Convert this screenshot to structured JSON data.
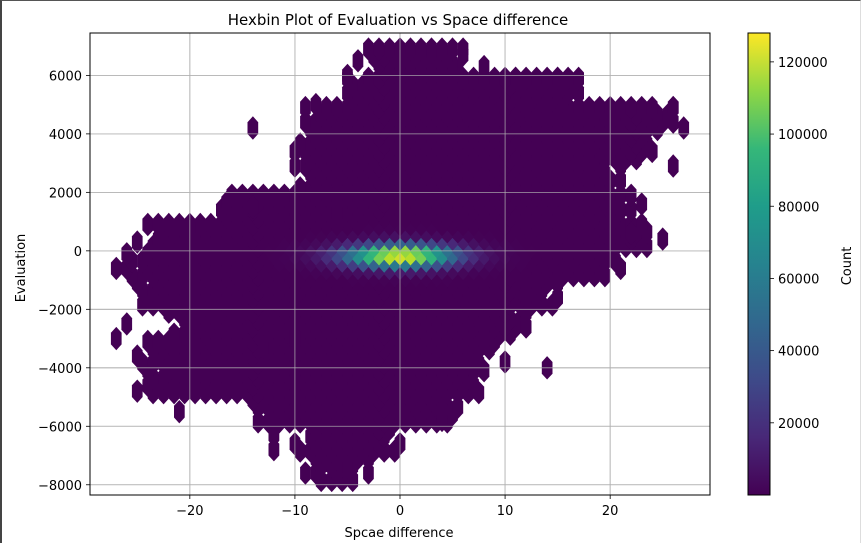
{
  "chart_data": {
    "type": "heatmap",
    "subtype": "hexbin",
    "title": "Hexbin Plot of Evaluation vs Space difference",
    "xlabel": "Spcae difference",
    "ylabel": "Evaluation",
    "xlim": [
      -29.5,
      29.5
    ],
    "ylim": [
      -8350,
      7450
    ],
    "xticks": [
      -20,
      -10,
      0,
      10,
      20
    ],
    "xtick_labels": [
      "−20",
      "−10",
      "0",
      "10",
      "20"
    ],
    "yticks": [
      -8000,
      -6000,
      -4000,
      -2000,
      0,
      2000,
      4000,
      6000
    ],
    "ytick_labels": [
      "−8000",
      "−6000",
      "−4000",
      "−2000",
      "0",
      "2000",
      "4000",
      "6000"
    ],
    "grid": true,
    "colormap": "viridis",
    "colorbar": {
      "label": "Count",
      "range": [
        0,
        128000
      ],
      "ticks": [
        20000,
        40000,
        60000,
        80000,
        100000,
        120000
      ],
      "tick_labels": [
        "20000",
        "40000",
        "60000",
        "80000",
        "100000",
        "120000"
      ]
    },
    "hex_size": {
      "dx": 0.5,
      "dy": 250
    },
    "regions": [
      {
        "y_range": [
          -8000,
          -7000
        ],
        "x_range": [
          -8,
          -3
        ]
      },
      {
        "y_range": [
          -7000,
          -6000
        ],
        "x_range": [
          -10,
          0
        ]
      },
      {
        "y_range": [
          -6000,
          -5000
        ],
        "x_range": [
          -14,
          6
        ]
      },
      {
        "y_range": [
          -5000,
          -4000
        ],
        "x_range": [
          -24,
          8
        ]
      },
      {
        "y_range": [
          -4000,
          -3000
        ],
        "x_range": [
          -25,
          9
        ]
      },
      {
        "y_range": [
          -3000,
          -2000
        ],
        "x_range": [
          -22,
          12
        ]
      },
      {
        "y_range": [
          -2000,
          -1000
        ],
        "x_range": [
          -25,
          15
        ]
      },
      {
        "y_range": [
          -1000,
          0
        ],
        "x_range": [
          -26,
          21
        ]
      },
      {
        "y_range": [
          0,
          1000
        ],
        "x_range": [
          -24,
          25
        ]
      },
      {
        "y_range": [
          1000,
          2000
        ],
        "x_range": [
          -17,
          22
        ]
      },
      {
        "y_range": [
          2000,
          3000
        ],
        "x_range": [
          -10,
          21
        ]
      },
      {
        "y_range": [
          3000,
          4000
        ],
        "x_range": [
          -10,
          24
        ]
      },
      {
        "y_range": [
          4000,
          5000
        ],
        "x_range": [
          -9,
          26
        ]
      },
      {
        "y_range": [
          5000,
          6000
        ],
        "x_range": [
          -5,
          17
        ]
      },
      {
        "y_range": [
          6000,
          7000
        ],
        "x_range": [
          -3,
          6
        ]
      }
    ],
    "outliers": [
      [
        -14,
        4200
      ],
      [
        -8,
        5000
      ],
      [
        -5,
        6000
      ],
      [
        -4,
        6500
      ],
      [
        3,
        6800
      ],
      [
        6,
        6700
      ],
      [
        8,
        6300
      ],
      [
        11,
        5900
      ],
      [
        15,
        5900
      ],
      [
        26,
        4900
      ],
      [
        27,
        4200
      ],
      [
        26,
        2900
      ],
      [
        23,
        1600
      ],
      [
        22,
        600
      ],
      [
        -25,
        300
      ],
      [
        -27,
        -600
      ],
      [
        -26,
        -2500
      ],
      [
        -27,
        -3000
      ],
      [
        -25,
        -4800
      ],
      [
        -21,
        -5500
      ],
      [
        -12,
        -6300
      ],
      [
        -12,
        -6800
      ],
      [
        -9,
        -7600
      ],
      [
        -5,
        -7400
      ],
      [
        14,
        -4000
      ],
      [
        12,
        -2600
      ],
      [
        10,
        -3800
      ],
      [
        -10,
        -3000
      ],
      [
        -13,
        -3300
      ],
      [
        -6,
        1300
      ],
      [
        4,
        -5800
      ],
      [
        -14,
        1500
      ],
      [
        -20,
        800
      ]
    ],
    "density_peak": {
      "x": 0,
      "y": 0,
      "count": 128000
    },
    "density_spread": {
      "x_sd": 3.5,
      "y_sd": 260
    }
  }
}
